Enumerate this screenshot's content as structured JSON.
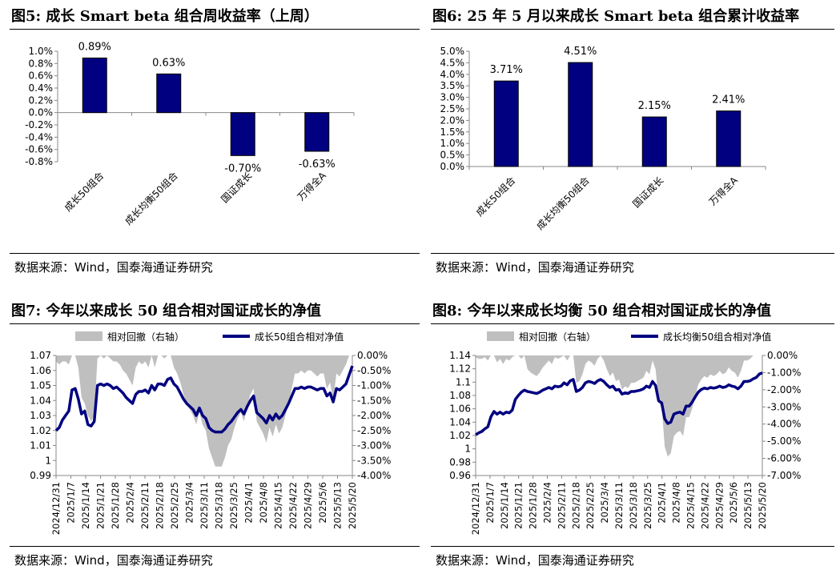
{
  "source_text": "数据来源：Wind，国泰海通证券研究",
  "panels": [
    {
      "title": "图5:  成长 Smart beta 组合周收益率（上周）"
    },
    {
      "title": "图6:  25 年 5 月以来成长 Smart beta 组合累计收益率"
    },
    {
      "title": "图7:  今年以来成长 50 组合相对国证成长的净值"
    },
    {
      "title": "图8:  今年以来成长均衡 50 组合相对国证成长的净值"
    }
  ],
  "colors": {
    "bar": "#000080",
    "line": "#000080",
    "area": "#BFBFBF"
  },
  "chart_data": [
    {
      "type": "bar",
      "title": "",
      "categories": [
        "成长50组合",
        "成长均衡50组合",
        "国证成长",
        "万得全A"
      ],
      "values": [
        0.89,
        0.63,
        -0.7,
        -0.63
      ],
      "labels": [
        "0.89%",
        "0.63%",
        "-0.70%",
        "-0.63%"
      ],
      "ylim": [
        -0.8,
        1.0
      ],
      "yticks": [
        "1.0%",
        "0.8%",
        "0.6%",
        "0.4%",
        "0.2%",
        "0.0%",
        "-0.2%",
        "-0.4%",
        "-0.6%",
        "-0.8%"
      ],
      "xlabel": "",
      "ylabel": "",
      "grid": false
    },
    {
      "type": "bar",
      "title": "",
      "categories": [
        "成长50组合",
        "成长均衡50组合",
        "国证成长",
        "万得全A"
      ],
      "values": [
        3.71,
        4.51,
        2.15,
        2.41
      ],
      "labels": [
        "3.71%",
        "4.51%",
        "2.15%",
        "2.41%"
      ],
      "ylim": [
        0,
        5.0
      ],
      "yticks": [
        "5.0%",
        "4.5%",
        "4.0%",
        "3.5%",
        "3.0%",
        "2.5%",
        "2.0%",
        "1.5%",
        "1.0%",
        "0.5%",
        "0.0%"
      ],
      "xlabel": "",
      "ylabel": "",
      "grid": false
    },
    {
      "type": "line",
      "title": "",
      "legend": [
        "相对回撤（右轴）",
        "成长50组合相对净值"
      ],
      "legend_position": "top",
      "x_ticks": [
        "2024/12/31",
        "2025/1/7",
        "2025/1/14",
        "2025/1/21",
        "2025/1/28",
        "2025/2/4",
        "2025/2/11",
        "2025/2/18",
        "2025/2/25",
        "2025/3/4",
        "2025/3/11",
        "2025/3/18",
        "2025/3/25",
        "2025/4/1",
        "2025/4/8",
        "2025/4/15",
        "2025/4/22",
        "2025/4/29",
        "2025/5/6",
        "2025/5/13",
        "2025/5/20"
      ],
      "yticks_left": [
        "1.07",
        "1.06",
        "1.05",
        "1.04",
        "1.03",
        "1.02",
        "1.01",
        "1",
        "0.99"
      ],
      "yticks_right": [
        "0.00%",
        "-0.50%",
        "-1.00%",
        "-1.50%",
        "-2.00%",
        "-2.50%",
        "-3.00%",
        "-3.50%",
        "-4.00%"
      ],
      "ylim_left": [
        0.99,
        1.07
      ],
      "ylim_right": [
        -4.0,
        0.0
      ],
      "series": [
        {
          "name": "成长50组合相对净值",
          "axis": "left",
          "values": [
            1.02,
            1.022,
            1.027,
            1.03,
            1.033,
            1.047,
            1.048,
            1.041,
            1.031,
            1.033,
            1.024,
            1.023,
            1.026,
            1.05,
            1.051,
            1.05,
            1.051,
            1.05,
            1.048,
            1.049,
            1.047,
            1.045,
            1.042,
            1.04,
            1.038,
            1.044,
            1.046,
            1.046,
            1.047,
            1.045,
            1.05,
            1.047,
            1.051,
            1.051,
            1.05,
            1.054,
            1.055,
            1.051,
            1.049,
            1.045,
            1.041,
            1.038,
            1.036,
            1.034,
            1.03,
            1.035,
            1.03,
            1.028,
            1.022,
            1.02,
            1.019,
            1.019,
            1.019,
            1.021,
            1.024,
            1.026,
            1.029,
            1.032,
            1.034,
            1.031,
            1.036,
            1.04,
            1.043,
            1.032,
            1.03,
            1.028,
            1.025,
            1.03,
            1.027,
            1.031,
            1.028,
            1.03,
            1.034,
            1.038,
            1.043,
            1.048,
            1.048,
            1.049,
            1.048,
            1.049,
            1.049,
            1.048,
            1.047,
            1.048,
            1.048,
            1.043,
            1.045,
            1.039,
            1.048,
            1.047,
            1.049,
            1.051,
            1.057,
            1.063
          ]
        },
        {
          "name": "相对回撤（右轴）",
          "axis": "right",
          "values": [
            -0.2,
            -0.3,
            -0.2,
            -0.2,
            -0.3,
            0.0,
            0.0,
            -0.4,
            -1.4,
            -1.6,
            -2.0,
            -2.2,
            -2.0,
            -0.1,
            0.0,
            -0.1,
            0.0,
            -0.1,
            -0.2,
            -0.2,
            -0.3,
            -0.5,
            -0.6,
            -0.8,
            -1.0,
            -0.4,
            -0.2,
            -0.3,
            -0.2,
            -0.4,
            0.0,
            -0.4,
            0.0,
            0.0,
            -0.1,
            0.0,
            0.0,
            -0.4,
            -0.6,
            -0.9,
            -1.3,
            -1.6,
            -1.8,
            -2.0,
            -2.3,
            -1.9,
            -2.3,
            -2.5,
            -3.1,
            -3.4,
            -3.7,
            -3.7,
            -3.7,
            -3.4,
            -3.0,
            -2.8,
            -2.4,
            -2.1,
            -1.9,
            -2.2,
            -1.7,
            -1.3,
            -1.1,
            -2.2,
            -2.4,
            -2.6,
            -2.9,
            -2.4,
            -2.7,
            -2.3,
            -2.6,
            -2.4,
            -2.0,
            -1.6,
            -1.1,
            -0.6,
            -0.6,
            -0.5,
            -0.6,
            -0.5,
            -0.5,
            -0.6,
            -0.7,
            -0.6,
            -0.6,
            -1.1,
            -0.9,
            -1.5,
            -0.6,
            -0.7,
            -0.5,
            -0.3,
            0.0,
            0.0
          ]
        }
      ],
      "xlabel": "",
      "ylabel": "",
      "grid": false
    },
    {
      "type": "line",
      "title": "",
      "legend": [
        "相对回撤（右轴）",
        "成长均衡50组合相对净值"
      ],
      "legend_position": "top",
      "x_ticks": [
        "2024/12/31",
        "2025/1/7",
        "2025/1/14",
        "2025/1/21",
        "2025/1/28",
        "2025/2/4",
        "2025/2/11",
        "2025/2/18",
        "2025/2/25",
        "2025/3/4",
        "2025/3/11",
        "2025/3/18",
        "2025/3/25",
        "2025/4/1",
        "2025/4/8",
        "2025/4/15",
        "2025/4/22",
        "2025/4/29",
        "2025/5/6",
        "2025/5/13",
        "2025/5/20"
      ],
      "yticks_left": [
        "1.14",
        "1.12",
        "1.1",
        "1.08",
        "1.06",
        "1.04",
        "1.02",
        "1",
        "0.98",
        "0.96"
      ],
      "yticks_right": [
        "0.00%",
        "-1.00%",
        "-2.00%",
        "-3.00%",
        "-4.00%",
        "-5.00%",
        "-6.00%",
        "-7.00%"
      ],
      "ylim_left": [
        0.96,
        1.14
      ],
      "ylim_right": [
        -7.0,
        0.0
      ],
      "series": [
        {
          "name": "成长均衡50组合相对净值",
          "axis": "left",
          "values": [
            1.021,
            1.024,
            1.026,
            1.03,
            1.033,
            1.048,
            1.056,
            1.052,
            1.055,
            1.052,
            1.055,
            1.054,
            1.058,
            1.074,
            1.08,
            1.085,
            1.088,
            1.086,
            1.085,
            1.084,
            1.083,
            1.085,
            1.088,
            1.09,
            1.092,
            1.09,
            1.094,
            1.093,
            1.094,
            1.099,
            1.096,
            1.102,
            1.104,
            1.086,
            1.088,
            1.092,
            1.099,
            1.101,
            1.1,
            1.098,
            1.102,
            1.104,
            1.101,
            1.096,
            1.092,
            1.094,
            1.088,
            1.089,
            1.082,
            1.084,
            1.083,
            1.086,
            1.086,
            1.087,
            1.088,
            1.09,
            1.094,
            1.092,
            1.101,
            1.095,
            1.072,
            1.069,
            1.045,
            1.038,
            1.04,
            1.052,
            1.054,
            1.055,
            1.052,
            1.064,
            1.064,
            1.07,
            1.078,
            1.085,
            1.089,
            1.091,
            1.09,
            1.092,
            1.091,
            1.092,
            1.094,
            1.092,
            1.093,
            1.096,
            1.094,
            1.093,
            1.09,
            1.094,
            1.101,
            1.101,
            1.102,
            1.105,
            1.107,
            1.112,
            1.114
          ]
        },
        {
          "name": "相对回撤（右轴）",
          "axis": "right",
          "values": [
            -0.1,
            -0.2,
            -0.2,
            -0.1,
            -0.3,
            0.0,
            0.0,
            -0.4,
            -0.2,
            -0.5,
            -0.2,
            -0.3,
            -0.1,
            0.0,
            0.0,
            -0.2,
            0.0,
            -0.8,
            -1.0,
            -1.1,
            -1.2,
            -1.0,
            -0.7,
            -0.5,
            -0.3,
            -0.5,
            -0.1,
            -0.2,
            -0.1,
            0.0,
            -0.3,
            0.0,
            0.0,
            -1.6,
            -1.5,
            -1.1,
            -0.5,
            -0.3,
            -0.4,
            -0.6,
            -0.2,
            0.0,
            -0.3,
            -0.8,
            -1.2,
            -1.0,
            -1.5,
            -1.4,
            -2.0,
            -1.8,
            -1.9,
            -1.6,
            -1.6,
            -1.5,
            -1.4,
            -1.3,
            -0.9,
            -1.1,
            -0.3,
            -0.8,
            -2.7,
            -3.0,
            -5.3,
            -5.9,
            -5.7,
            -4.7,
            -4.5,
            -4.4,
            -4.7,
            -3.6,
            -3.6,
            -3.1,
            -2.4,
            -1.7,
            -1.4,
            -1.2,
            -1.3,
            -1.1,
            -1.2,
            -1.1,
            -0.9,
            -1.1,
            -1.0,
            -0.7,
            -0.9,
            -1.0,
            -1.3,
            -0.9,
            -0.3,
            -0.3,
            -0.2,
            0.0,
            0.0,
            0.0,
            0.0
          ]
        }
      ],
      "xlabel": "",
      "ylabel": "",
      "grid": false
    }
  ]
}
